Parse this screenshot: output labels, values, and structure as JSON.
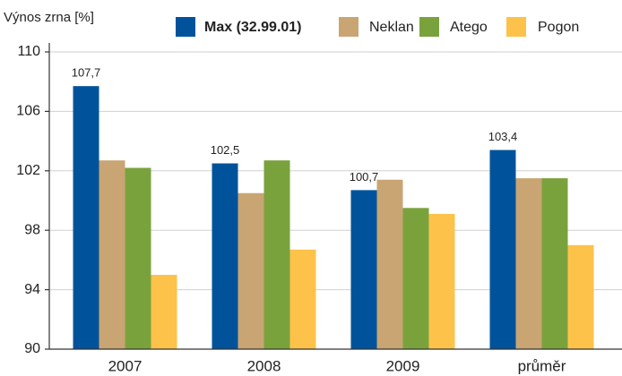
{
  "chart_data": {
    "type": "bar",
    "y_label": "Výnos zrna [%]",
    "categories": [
      "2007",
      "2008",
      "2009",
      "průměr"
    ],
    "series": [
      {
        "name": "Max (32.99.01)",
        "color": "#00539b",
        "values": [
          107.7,
          102.5,
          100.7,
          103.4
        ],
        "value_labels": [
          "107,7",
          "102,5",
          "100,7",
          "103,4"
        ]
      },
      {
        "name": "Neklan",
        "color": "#c8a573",
        "values": [
          102.7,
          100.5,
          101.4,
          101.5
        ]
      },
      {
        "name": "Atego",
        "color": "#7aa23c",
        "values": [
          102.2,
          102.7,
          99.5,
          101.5
        ]
      },
      {
        "name": "Pogon",
        "color": "#fdc24a",
        "values": [
          95.0,
          96.7,
          99.1,
          97.0
        ]
      }
    ],
    "ylim": [
      90,
      110
    ],
    "yticks": [
      90,
      94,
      98,
      102,
      106,
      110
    ],
    "grid": true
  }
}
